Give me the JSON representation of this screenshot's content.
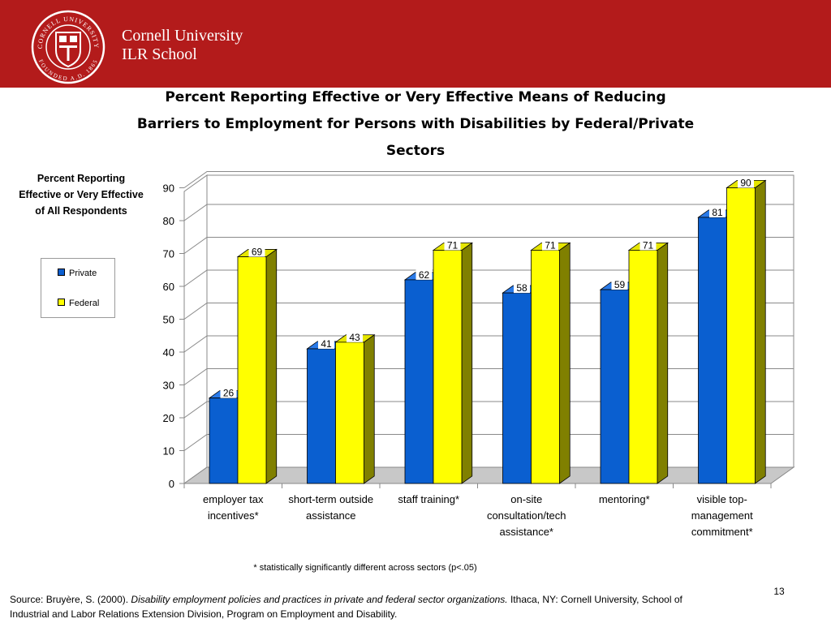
{
  "header": {
    "seal_text_top": "CORNELL UNIVERSITY",
    "seal_text_bottom": "FOUNDED A.D. 1865",
    "brand_line1": "Cornell University",
    "brand_line2": "ILR School",
    "bg_color": "#b31b1b"
  },
  "chart_data": {
    "type": "bar",
    "title_lines": [
      "Percent Reporting Effective or Very Effective Means of Reducing",
      "Barriers to Employment for Persons with Disabilities by Federal/Private",
      "Sectors"
    ],
    "ylabel_lines": [
      "Percent Reporting",
      "Effective or Very Effective",
      "of All Respondents"
    ],
    "categories": [
      [
        "employer tax",
        "incentives*"
      ],
      [
        "short-term outside",
        "assistance"
      ],
      [
        "staff training*"
      ],
      [
        "on-site",
        "consultation/tech",
        "assistance*"
      ],
      [
        "mentoring*"
      ],
      [
        "visible top-",
        "management",
        "commitment*"
      ]
    ],
    "series": [
      {
        "name": "Private",
        "values": [
          26,
          41,
          62,
          58,
          59,
          81
        ],
        "color": "#0a5fd0"
      },
      {
        "name": "Federal",
        "values": [
          69,
          43,
          71,
          71,
          71,
          90
        ],
        "color": "#ffff00"
      }
    ],
    "ylim": [
      0,
      90
    ],
    "yticks": [
      "0",
      "10",
      "20",
      "30",
      "40",
      "50",
      "60",
      "70",
      "80",
      "90"
    ],
    "grid": true,
    "style": "3d",
    "legend_position": "left"
  },
  "footnote": "* statistically significantly different across sectors (p<.05)",
  "source": {
    "prefix": "Source: Bruyère, S.  (2000). ",
    "title": "Disability employment policies and practices in private and federal sector organizations.",
    "suffix": " Ithaca, NY: Cornell University, School of Industrial and Labor Relations Extension Division, Program on Employment and Disability."
  },
  "page_number": "13"
}
